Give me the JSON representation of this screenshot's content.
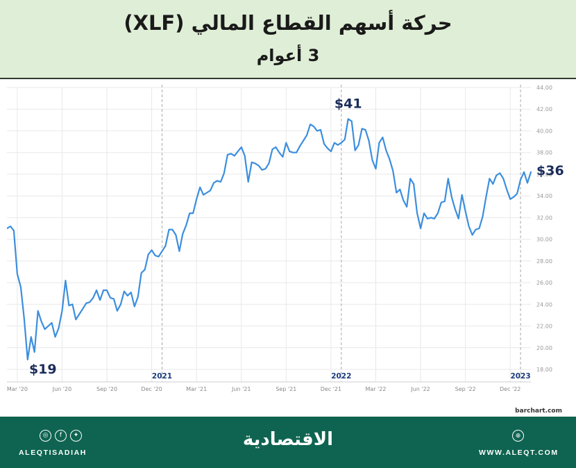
{
  "header": {
    "title": "حركة أسهم القطاع المالي (XLF)",
    "subtitle": "3 أعوام"
  },
  "chart_data": {
    "type": "line",
    "series": [
      {
        "values": [
          31.0,
          31.2,
          30.8,
          26.8,
          25.6,
          22.7,
          18.9,
          21.0,
          19.6,
          23.4,
          22.4,
          21.7,
          22.0,
          22.3,
          21.0,
          21.8,
          23.4,
          26.2,
          23.9,
          24.0,
          22.6,
          23.1,
          23.6,
          24.1,
          24.2,
          24.6,
          25.3,
          24.4,
          25.3,
          25.3,
          24.6,
          24.5,
          23.4,
          24.0,
          25.2,
          24.8,
          25.1,
          23.8,
          24.7,
          26.9,
          27.2,
          28.6,
          29.0,
          28.5,
          28.4,
          28.9,
          29.4,
          30.9,
          30.9,
          30.4,
          28.9,
          30.5,
          31.3,
          32.4,
          32.4,
          33.7,
          34.8,
          34.1,
          34.3,
          34.5,
          35.2,
          35.4,
          35.3,
          36.1,
          37.8,
          37.9,
          37.7,
          38.1,
          38.5,
          37.7,
          35.3,
          37.1,
          37.0,
          36.8,
          36.4,
          36.5,
          37.0,
          38.3,
          38.5,
          38.0,
          37.6,
          38.9,
          38.1,
          38.0,
          38.0,
          38.6,
          39.1,
          39.6,
          40.6,
          40.4,
          40.0,
          40.1,
          38.8,
          38.4,
          38.1,
          38.9,
          38.7,
          38.9,
          39.2,
          41.1,
          40.9,
          38.2,
          38.7,
          40.2,
          40.1,
          39.1,
          37.3,
          36.5,
          38.9,
          39.4,
          38.2,
          37.4,
          36.3,
          34.3,
          34.6,
          33.6,
          33.0,
          35.6,
          35.1,
          32.4,
          31.0,
          32.4,
          31.9,
          32.0,
          31.9,
          32.4,
          33.4,
          33.5,
          35.6,
          33.9,
          32.8,
          31.9,
          34.1,
          32.6,
          31.2,
          30.4,
          30.9,
          31.0,
          32.1,
          33.9,
          35.6,
          35.1,
          35.9,
          36.1,
          35.6,
          34.6,
          33.7,
          33.9,
          34.2,
          35.5,
          36.2,
          35.2,
          36.2
        ]
      }
    ],
    "x_tick_labels": [
      "Mar '20",
      "Jun '20",
      "Sep '20",
      "Dec '20",
      "Mar '21",
      "Jun '21",
      "Sep '21",
      "Dec '21",
      "Mar '22",
      "Jun '22",
      "Sep '22",
      "Dec '22"
    ],
    "x_tick_index": [
      3,
      16,
      29,
      42,
      55,
      68,
      81,
      94,
      107,
      120,
      133,
      146
    ],
    "year_markers": [
      {
        "label": "2021",
        "index": 45
      },
      {
        "label": "2022",
        "index": 97
      },
      {
        "label": "2023",
        "index": 149
      }
    ],
    "y_ticks": [
      "44.00",
      "42.00",
      "40.00",
      "38.00",
      "36.00",
      "34.00",
      "32.00",
      "30.00",
      "28.00",
      "26.00",
      "24.00",
      "22.00",
      "20.00",
      "18.00"
    ],
    "ylim": [
      18,
      44
    ],
    "annotations": [
      {
        "text": "$19",
        "index": 6
      },
      {
        "text": "$41",
        "index": 99
      },
      {
        "text": "$36",
        "index": 152
      }
    ],
    "source": "barchart.com",
    "grid": true,
    "line_color": "#3b8ede"
  },
  "footer": {
    "handle": "ALEQTISADIAH",
    "brand": "الاقتصادية",
    "website": "WWW.ALEQT.COM"
  },
  "icons": [
    "instagram-icon",
    "facebook-icon",
    "twitter-icon",
    "web-icon"
  ]
}
